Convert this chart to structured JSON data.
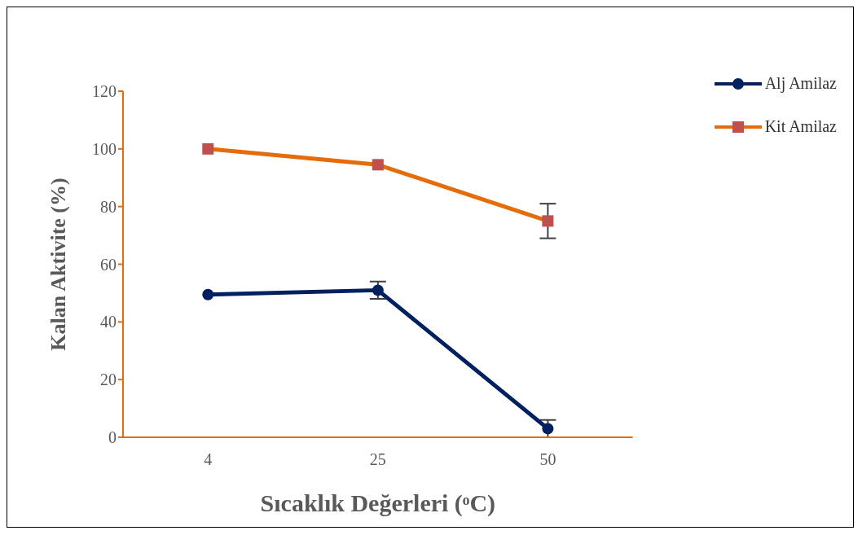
{
  "chart_data": {
    "type": "line",
    "xlabel": "Sıcaklık Değerleri (ᵒC)",
    "ylabel": "Kalan Aktivite (%)",
    "categories": [
      "4",
      "25",
      "50"
    ],
    "ylim": [
      0,
      120
    ],
    "yticks": [
      0,
      20,
      40,
      60,
      80,
      100,
      120
    ],
    "legend": "top right",
    "grid": false,
    "series": [
      {
        "name": "Alj Amilaz",
        "color": "#002060",
        "marker": "circle",
        "values": [
          49.5,
          51,
          3
        ],
        "errors": [
          null,
          3,
          3
        ]
      },
      {
        "name": "Kit Amilaz",
        "color": "#e46c0a",
        "colors": [
          "#c0504d",
          "#c0504d",
          "#c0504d"
        ],
        "marker": "square",
        "values": [
          100,
          94.5,
          75
        ],
        "errors": [
          null,
          null,
          6
        ]
      }
    ]
  }
}
